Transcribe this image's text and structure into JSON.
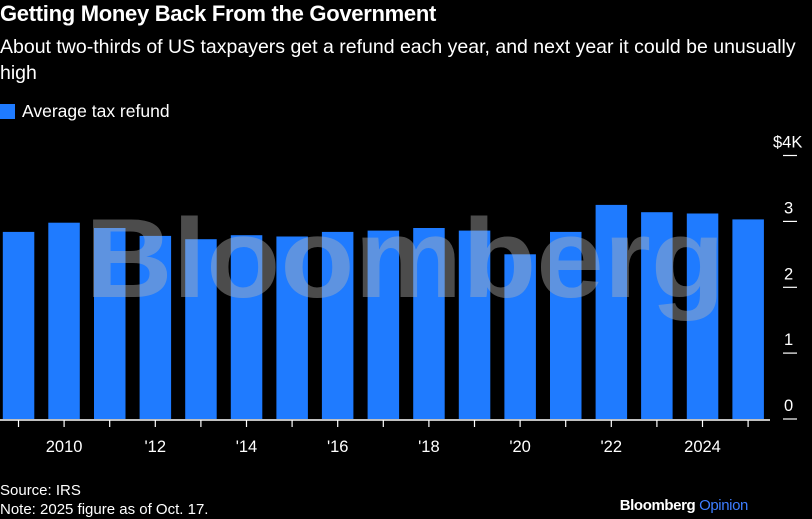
{
  "header": {
    "title": "Getting Money Back From the Government",
    "subtitle": "About two-thirds of US taxpayers get a refund each year, and next year it could be unusually high"
  },
  "legend": {
    "label": "Average tax refund"
  },
  "footer": {
    "source": "Source: IRS",
    "note": "Note: 2025 figure as of Oct. 17."
  },
  "brand": {
    "name": "Bloomberg",
    "section": "Opinion"
  },
  "watermark": "Bloomberg",
  "colors": {
    "bar": "#1f7bff",
    "background": "#000000",
    "text": "#ffffff",
    "accent": "#3d7dff"
  },
  "chart_data": {
    "type": "bar",
    "title": "Getting Money Back From the Government",
    "subtitle": "About two-thirds of US taxpayers get a refund each year, and next year it could be unusually high",
    "xlabel": "",
    "ylabel": "",
    "series": [
      {
        "name": "Average tax refund",
        "x": [
          2009,
          2010,
          2011,
          2012,
          2013,
          2014,
          2015,
          2016,
          2017,
          2018,
          2019,
          2020,
          2021,
          2022,
          2023,
          2024,
          2025
        ],
        "values": [
          2.84,
          2.98,
          2.9,
          2.78,
          2.73,
          2.79,
          2.77,
          2.84,
          2.86,
          2.9,
          2.86,
          2.5,
          2.84,
          3.25,
          3.14,
          3.12,
          3.03
        ]
      }
    ],
    "x_ticks": [
      {
        "value": 2010,
        "label": "2010"
      },
      {
        "value": 2012,
        "label": "'12"
      },
      {
        "value": 2014,
        "label": "'14"
      },
      {
        "value": 2016,
        "label": "'16"
      },
      {
        "value": 2018,
        "label": "'18"
      },
      {
        "value": 2020,
        "label": "'20"
      },
      {
        "value": 2022,
        "label": "'22"
      },
      {
        "value": 2024,
        "label": "2024"
      }
    ],
    "y_ticks": [
      {
        "value": 0,
        "label": "0"
      },
      {
        "value": 1,
        "label": "1"
      },
      {
        "value": 2,
        "label": "2"
      },
      {
        "value": 3,
        "label": "3"
      },
      {
        "value": 4,
        "label": "$4K"
      }
    ],
    "ylim": [
      0,
      4
    ],
    "y_axis_side": "right",
    "grid": false,
    "legend_position": "top-left"
  }
}
